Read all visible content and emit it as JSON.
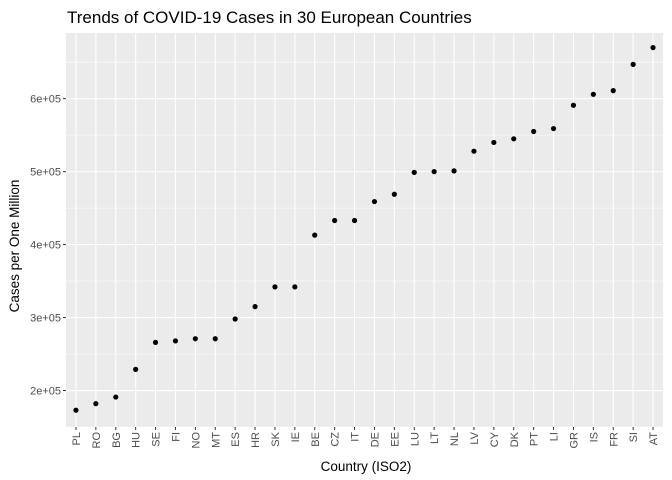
{
  "chart_data": {
    "type": "scatter",
    "title": "Trends of COVID-19 Cases in 30 European Countries",
    "xlabel": "Country (ISO2)",
    "ylabel": "Cases per One Million",
    "categories": [
      "PL",
      "RO",
      "BG",
      "HU",
      "SE",
      "FI",
      "NO",
      "MT",
      "ES",
      "HR",
      "SK",
      "IE",
      "BE",
      "CZ",
      "IT",
      "DE",
      "EE",
      "LU",
      "LT",
      "NL",
      "LV",
      "CY",
      "DK",
      "PT",
      "LI",
      "GR",
      "IS",
      "FR",
      "SI",
      "AT"
    ],
    "values": [
      173000,
      182000,
      191000,
      229000,
      266000,
      268000,
      271000,
      271000,
      298000,
      315000,
      342000,
      342000,
      413000,
      433000,
      433000,
      459000,
      469000,
      499000,
      500000,
      501000,
      528000,
      540000,
      545000,
      555000,
      559000,
      591000,
      606000,
      611000,
      647000,
      670000
    ],
    "ylim": [
      150000,
      690000
    ],
    "yticks": [
      200000,
      300000,
      400000,
      500000,
      600000
    ],
    "ytick_labels": [
      "2e+05",
      "3e+05",
      "4e+05",
      "5e+05",
      "6e+05"
    ],
    "grid": true,
    "panel_background": "#ebebeb",
    "grid_color": "#ffffff",
    "point_color": "#000000"
  }
}
